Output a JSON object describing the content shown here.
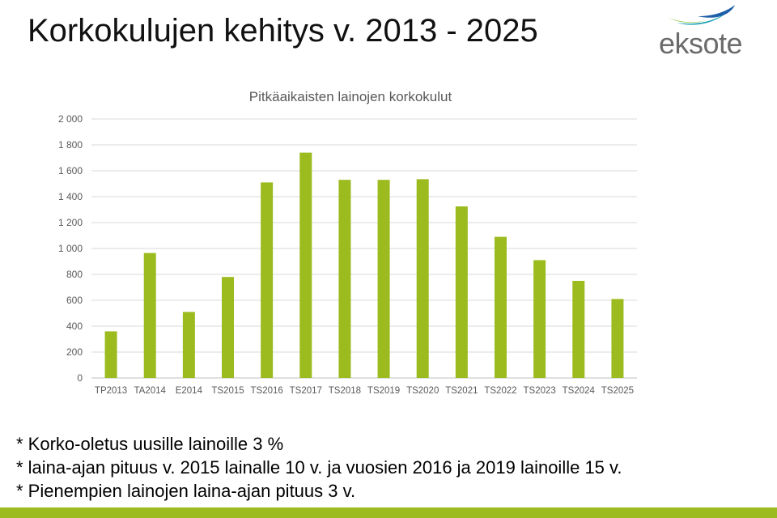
{
  "slide": {
    "title": "Korkokulujen kehitys v. 2013 - 2025",
    "logo_text": "eksote",
    "logo_icon": "eksote-wave-logo",
    "notes": [
      "* Korko-oletus uusille lainoille 3 %",
      "* laina-ajan pituus v. 2015 lainalle 10 v. ja vuosien 2016 ja 2019 lainoille 15 v.",
      "* Pienempien lainojen laina-ajan pituus 3 v."
    ],
    "colors": {
      "bar": "#9BBB1E",
      "logo_green": "#8DC63F",
      "logo_teal": "#1AA0B4",
      "logo_blue": "#1F5FA8",
      "bottom_bar": "#9BBB1E"
    }
  },
  "chart_data": {
    "type": "bar",
    "title": "Pitkäaikaisten lainojen korkokulut",
    "xlabel": "",
    "ylabel": "",
    "categories": [
      "TP2013",
      "TA2014",
      "E2014",
      "TS2015",
      "TS2016",
      "TS2017",
      "TS2018",
      "TS2019",
      "TS2020",
      "TS2021",
      "TS2022",
      "TS2023",
      "TS2024",
      "TS2025"
    ],
    "values": [
      360,
      965,
      510,
      780,
      1510,
      1740,
      1530,
      1530,
      1535,
      1325,
      1090,
      910,
      750,
      610
    ],
    "ylim": [
      0,
      2000
    ],
    "yticks": [
      0,
      200,
      400,
      600,
      800,
      1000,
      1200,
      1400,
      1600,
      1800,
      2000
    ],
    "ytick_labels": [
      "0",
      "200",
      "400",
      "600",
      "800",
      "1 000",
      "1 200",
      "1 400",
      "1 600",
      "1 800",
      "2 000"
    ],
    "grid": true,
    "legend": "none"
  }
}
